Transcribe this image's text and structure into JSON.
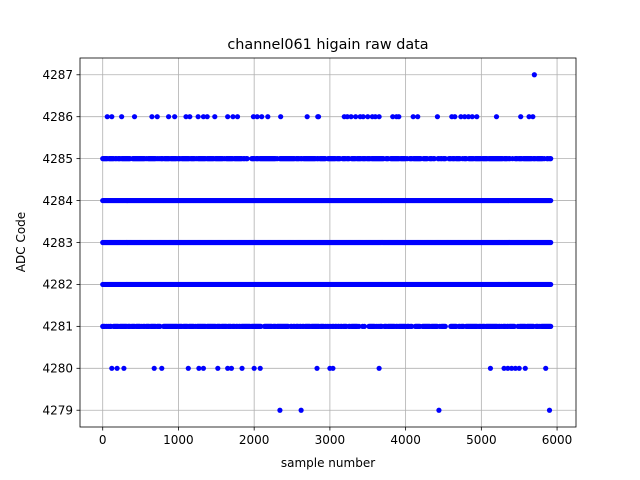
{
  "chart_data": {
    "type": "scatter",
    "title": "channel061 higain raw data",
    "xlabel": "sample number",
    "ylabel": "ADC Code",
    "xlim": [
      -300,
      6250
    ],
    "ylim": [
      4278.6,
      4287.4
    ],
    "xticks": [
      0,
      1000,
      2000,
      3000,
      4000,
      5000,
      6000
    ],
    "yticks": [
      4279,
      4280,
      4281,
      4282,
      4283,
      4284,
      4285,
      4286,
      4287
    ],
    "grid": true,
    "marker_color": "#0000ff",
    "x_range_samples": [
      0,
      5920
    ],
    "series": [
      {
        "name": "",
        "levels": [
          {
            "y": 4283,
            "coverage": "continuous",
            "x_start": 0,
            "x_end": 5920
          },
          {
            "y": 4284,
            "coverage": "continuous",
            "x_start": 0,
            "x_end": 5920
          },
          {
            "y": 4282,
            "coverage": "continuous",
            "x_start": 0,
            "x_end": 5920
          },
          {
            "y": 4285,
            "coverage": "dense",
            "x_start": 0,
            "x_end": 5920
          },
          {
            "y": 4281,
            "coverage": "dense",
            "x_start": 0,
            "x_end": 5920
          }
        ],
        "points": [
          {
            "x": 5700,
            "y": 4287
          },
          {
            "x": 60,
            "y": 4286
          },
          {
            "x": 120,
            "y": 4286
          },
          {
            "x": 250,
            "y": 4286
          },
          {
            "x": 420,
            "y": 4286
          },
          {
            "x": 650,
            "y": 4286
          },
          {
            "x": 720,
            "y": 4286
          },
          {
            "x": 870,
            "y": 4286
          },
          {
            "x": 950,
            "y": 4286
          },
          {
            "x": 1100,
            "y": 4286
          },
          {
            "x": 1150,
            "y": 4286
          },
          {
            "x": 1260,
            "y": 4286
          },
          {
            "x": 1330,
            "y": 4286
          },
          {
            "x": 1380,
            "y": 4286
          },
          {
            "x": 1480,
            "y": 4286
          },
          {
            "x": 1650,
            "y": 4286
          },
          {
            "x": 1720,
            "y": 4286
          },
          {
            "x": 1780,
            "y": 4286
          },
          {
            "x": 1990,
            "y": 4286
          },
          {
            "x": 2040,
            "y": 4286
          },
          {
            "x": 2100,
            "y": 4286
          },
          {
            "x": 2180,
            "y": 4286
          },
          {
            "x": 2350,
            "y": 4286
          },
          {
            "x": 2700,
            "y": 4286
          },
          {
            "x": 2840,
            "y": 4286
          },
          {
            "x": 2850,
            "y": 4286
          },
          {
            "x": 3190,
            "y": 4286
          },
          {
            "x": 3230,
            "y": 4286
          },
          {
            "x": 3280,
            "y": 4286
          },
          {
            "x": 3340,
            "y": 4286
          },
          {
            "x": 3400,
            "y": 4286
          },
          {
            "x": 3440,
            "y": 4286
          },
          {
            "x": 3500,
            "y": 4286
          },
          {
            "x": 3560,
            "y": 4286
          },
          {
            "x": 3600,
            "y": 4286
          },
          {
            "x": 3650,
            "y": 4286
          },
          {
            "x": 3830,
            "y": 4286
          },
          {
            "x": 3880,
            "y": 4286
          },
          {
            "x": 3910,
            "y": 4286
          },
          {
            "x": 4100,
            "y": 4286
          },
          {
            "x": 4160,
            "y": 4286
          },
          {
            "x": 4420,
            "y": 4286
          },
          {
            "x": 4610,
            "y": 4286
          },
          {
            "x": 4650,
            "y": 4286
          },
          {
            "x": 4730,
            "y": 4286
          },
          {
            "x": 4780,
            "y": 4286
          },
          {
            "x": 4830,
            "y": 4286
          },
          {
            "x": 4880,
            "y": 4286
          },
          {
            "x": 4940,
            "y": 4286
          },
          {
            "x": 5200,
            "y": 4286
          },
          {
            "x": 5520,
            "y": 4286
          },
          {
            "x": 5630,
            "y": 4286
          },
          {
            "x": 5680,
            "y": 4286
          },
          {
            "x": 120,
            "y": 4280
          },
          {
            "x": 190,
            "y": 4280
          },
          {
            "x": 280,
            "y": 4280
          },
          {
            "x": 680,
            "y": 4280
          },
          {
            "x": 780,
            "y": 4280
          },
          {
            "x": 1130,
            "y": 4280
          },
          {
            "x": 1270,
            "y": 4280
          },
          {
            "x": 1330,
            "y": 4280
          },
          {
            "x": 1520,
            "y": 4280
          },
          {
            "x": 1650,
            "y": 4280
          },
          {
            "x": 1700,
            "y": 4280
          },
          {
            "x": 1840,
            "y": 4280
          },
          {
            "x": 2000,
            "y": 4280
          },
          {
            "x": 2080,
            "y": 4280
          },
          {
            "x": 2830,
            "y": 4280
          },
          {
            "x": 3000,
            "y": 4280
          },
          {
            "x": 3040,
            "y": 4280
          },
          {
            "x": 3650,
            "y": 4280
          },
          {
            "x": 5120,
            "y": 4280
          },
          {
            "x": 5300,
            "y": 4280
          },
          {
            "x": 5350,
            "y": 4280
          },
          {
            "x": 5400,
            "y": 4280
          },
          {
            "x": 5450,
            "y": 4280
          },
          {
            "x": 5500,
            "y": 4280
          },
          {
            "x": 5580,
            "y": 4280
          },
          {
            "x": 5850,
            "y": 4280
          },
          {
            "x": 2340,
            "y": 4279
          },
          {
            "x": 2620,
            "y": 4279
          },
          {
            "x": 4440,
            "y": 4279
          },
          {
            "x": 5900,
            "y": 4279
          }
        ]
      }
    ]
  }
}
